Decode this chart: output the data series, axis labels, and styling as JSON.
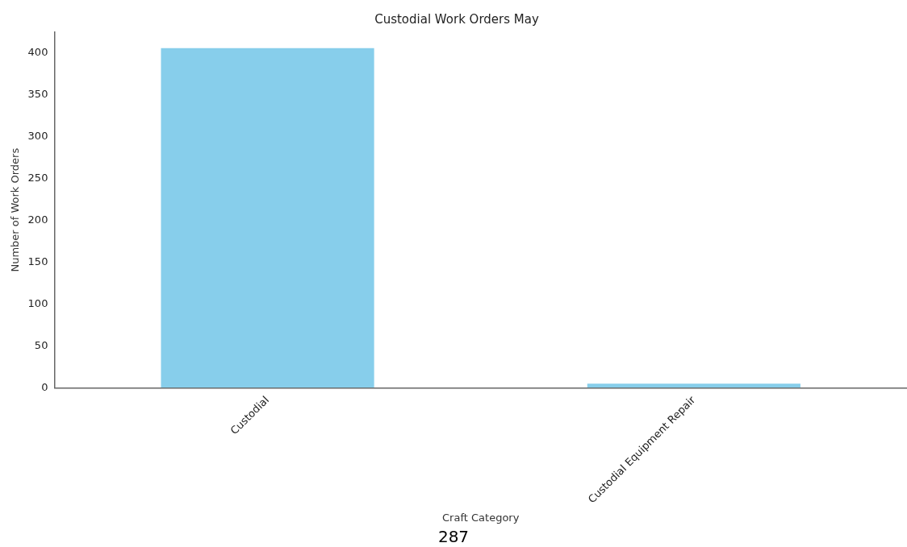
{
  "chart_data": {
    "type": "bar",
    "title": "Custodial Work Orders May",
    "xlabel": "Craft Category",
    "ylabel": "Number of Work Orders",
    "categories": [
      "Custodial",
      "Custodial Equipment Repair"
    ],
    "values": [
      406,
      5
    ],
    "color": "#87ceeb",
    "ylim": [
      0,
      425
    ],
    "yticks": [
      0,
      50,
      100,
      150,
      200,
      250,
      300,
      350,
      400
    ],
    "grid": false,
    "legend": false,
    "annotations": [
      "287"
    ]
  }
}
